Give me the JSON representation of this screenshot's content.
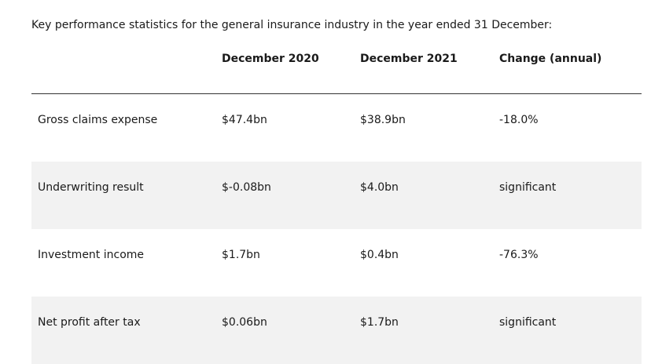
{
  "intro": "Key performance statistics for the general insurance industry in the year ended 31 December:",
  "table": {
    "headers": [
      "",
      "December 2020",
      "December 2021",
      "Change (annual)"
    ],
    "rows": [
      {
        "label": "Gross claims expense",
        "dec2020": "$47.4bn",
        "dec2021": "$38.9bn",
        "change": "-18.0%"
      },
      {
        "label": "Underwriting result",
        "dec2020": "$-0.08bn",
        "dec2021": "$4.0bn",
        "change": "significant"
      },
      {
        "label": "Investment income",
        "dec2020": "$1.7bn",
        "dec2021": "$0.4bn",
        "change": "-76.3%"
      },
      {
        "label": "Net profit after tax",
        "dec2020": "$0.06bn",
        "dec2021": "$1.7bn",
        "change": "significant"
      }
    ]
  },
  "colors": {
    "text": "#1a1a1a",
    "row_shade": "#f2f2f2",
    "header_rule": "#333333"
  }
}
